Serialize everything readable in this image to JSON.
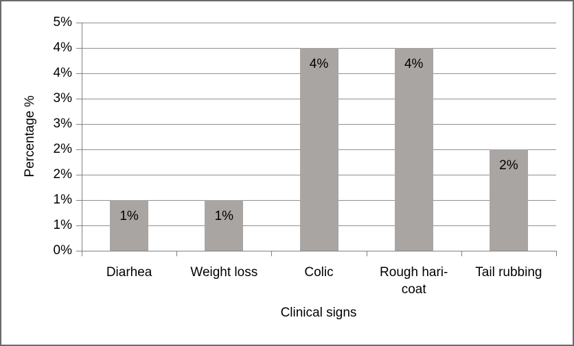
{
  "chart_data": {
    "type": "bar",
    "title": "",
    "categories": [
      "Diarhea",
      "Weight loss",
      "Colic",
      "Rough hari-coat",
      "Tail rubbing"
    ],
    "values": [
      1,
      1,
      4,
      4,
      2
    ],
    "bar_value_labels": [
      "1%",
      "1%",
      "4%",
      "4%",
      "2%"
    ],
    "xlabel": "Clinical signs",
    "ylabel": "Percentage %",
    "ylim": [
      0,
      4.5
    ],
    "ytick_step": 0.5,
    "ytick_labels": [
      "0%",
      "1%",
      "1%",
      "2%",
      "2%",
      "3%",
      "3%",
      "4%",
      "4%",
      "5%"
    ],
    "grid": true,
    "legend": "none",
    "colors": {
      "bar_fill": "#a9a5a2",
      "gridline": "#8e8e8e",
      "axis": "#7f7f7f",
      "frame_border": "#6a6a6a",
      "text": "#000000",
      "background": "#ffffff"
    }
  }
}
